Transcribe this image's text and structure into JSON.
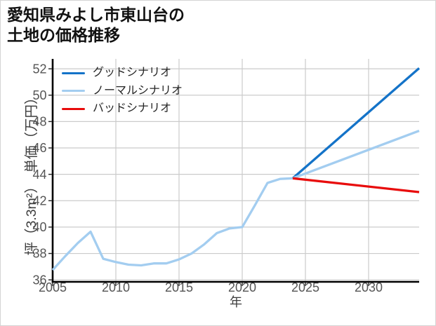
{
  "title": {
    "line1": "愛知県みよし市東山台の",
    "line2": "土地の価格推移"
  },
  "chart_data": {
    "type": "line",
    "title": "愛知県みよし市東山台の土地の価格推移",
    "xlabel": "年",
    "ylabel": "坪（3.3m²）　単価（万円）",
    "xlim": [
      2005,
      2034
    ],
    "ylim": [
      35.85,
      52.75
    ],
    "x_ticks": [
      2005,
      2010,
      2015,
      2020,
      2025,
      2030
    ],
    "y_ticks": [
      36,
      38,
      40,
      42,
      44,
      46,
      48,
      50,
      52
    ],
    "grid": true,
    "legend_position": "upper left",
    "colors": {
      "grid": "#cbcbcb",
      "spine": "#000000",
      "tick_text": "#555555",
      "axis_label_text": "#3d3d3d",
      "title_text": "#111111",
      "legend_text": "#262626"
    },
    "series": [
      {
        "id": "history",
        "label": null,
        "color": "#a3cdf0",
        "x": [
          2005,
          2006,
          2007,
          2008,
          2009,
          2010,
          2011,
          2012,
          2013,
          2014,
          2015,
          2016,
          2017,
          2018,
          2019,
          2020,
          2021,
          2022,
          2023,
          2024
        ],
        "values": [
          36.75,
          37.8,
          38.8,
          39.65,
          37.6,
          37.35,
          37.15,
          37.1,
          37.25,
          37.25,
          37.55,
          38.0,
          38.7,
          39.55,
          39.9,
          40.0,
          41.65,
          43.35,
          43.65,
          43.7
        ]
      },
      {
        "id": "good",
        "label": "グッドシナリオ",
        "color": "#1473c8",
        "x": [
          2024,
          2034
        ],
        "values": [
          43.7,
          52.05
        ]
      },
      {
        "id": "normal",
        "label": "ノーマルシナリオ",
        "color": "#a3cdf0",
        "x": [
          2024,
          2034
        ],
        "values": [
          43.7,
          47.3
        ]
      },
      {
        "id": "bad",
        "label": "バッドシナリオ",
        "color": "#e80c0c",
        "x": [
          2024,
          2034
        ],
        "values": [
          43.7,
          42.65
        ]
      }
    ]
  }
}
